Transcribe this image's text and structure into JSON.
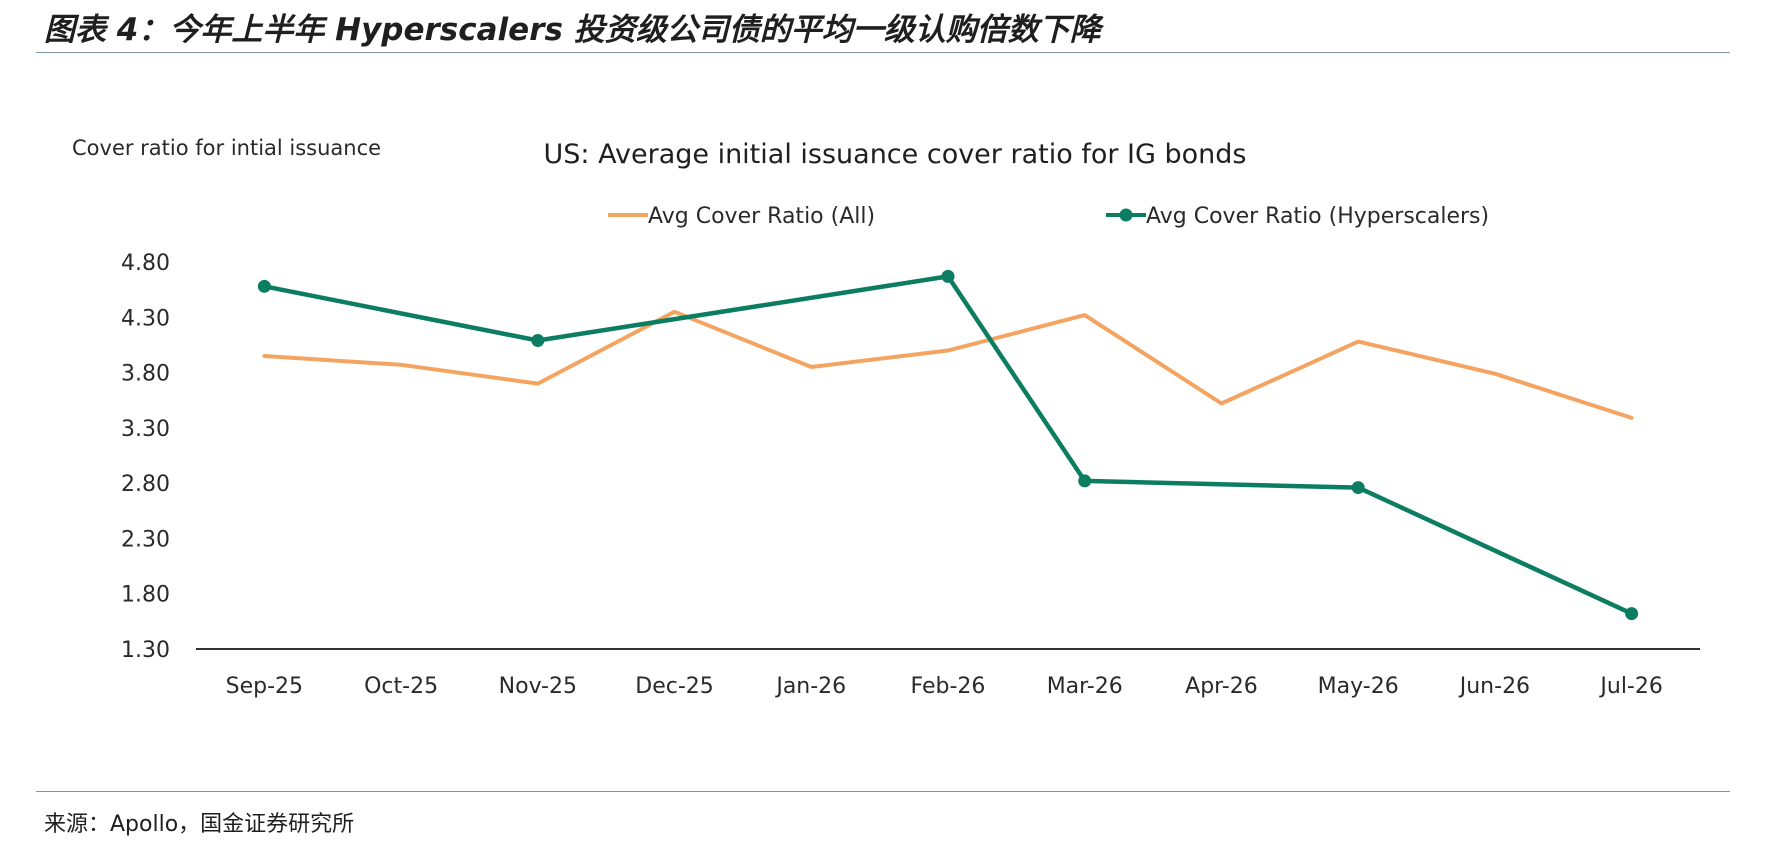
{
  "figure": {
    "title": "图表 4：今年上半年 Hyperscalers 投资级公司债的平均一级认购倍数下降",
    "source": "来源：Apollo，国金证券研究所"
  },
  "chart_data": {
    "type": "line",
    "title": "US: Average initial issuance cover ratio for IG bonds",
    "ylabel": "Cover ratio for intial issuance",
    "xlabel": "",
    "ylim": [
      1.3,
      4.8
    ],
    "yticks": [
      "4.80",
      "4.30",
      "3.80",
      "3.30",
      "2.80",
      "2.30",
      "1.80",
      "1.30"
    ],
    "categories": [
      "Sep-25",
      "Oct-25",
      "Nov-25",
      "Dec-25",
      "Jan-26",
      "Feb-26",
      "Mar-26",
      "Apr-26",
      "May-26",
      "Jun-26",
      "Jul-26"
    ],
    "legend_position": "top-center",
    "grid": false,
    "series": [
      {
        "name": "Avg Cover Ratio (All)",
        "color": "#f4a460",
        "markers": false,
        "values": [
          3.95,
          3.87,
          3.7,
          4.35,
          3.85,
          4.0,
          4.32,
          3.52,
          4.08,
          3.79,
          3.39
        ]
      },
      {
        "name": "Avg Cover Ratio (Hyperscalers)",
        "color": "#0d7d62",
        "markers": true,
        "values": [
          4.58,
          null,
          4.09,
          null,
          null,
          4.67,
          2.82,
          null,
          2.76,
          null,
          1.62
        ]
      }
    ]
  }
}
